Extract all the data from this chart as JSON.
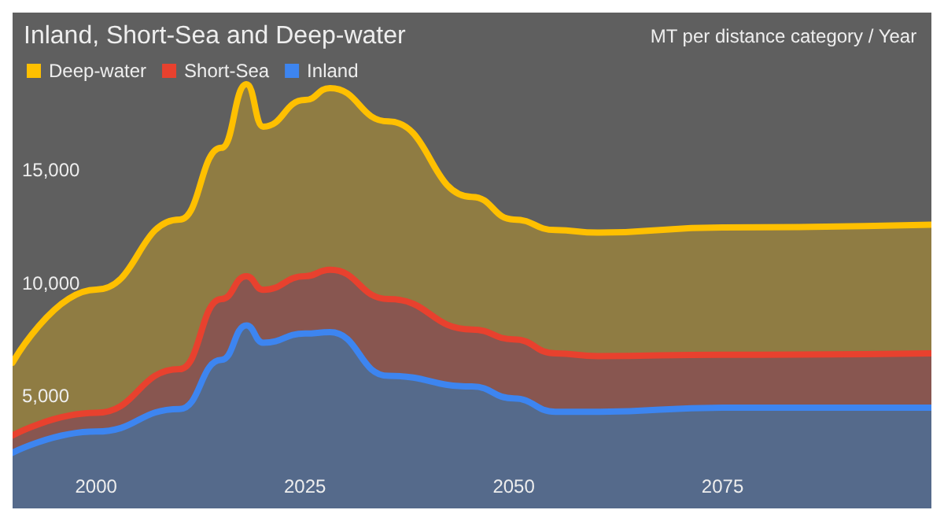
{
  "chart_data": {
    "type": "area",
    "title": "Inland, Short-Sea and Deep-water",
    "ylabel": "MT per distance category / Year",
    "x": [
      1990,
      2000,
      2010,
      2015,
      2018,
      2020,
      2025,
      2028,
      2035,
      2045,
      2050,
      2055,
      2060,
      2075,
      2100
    ],
    "stacked": true,
    "series": [
      {
        "name": "Inland",
        "color": "#3d85f0",
        "values": [
          2470,
          3410,
          4410,
          6590,
          8120,
          7350,
          7760,
          7820,
          5880,
          5410,
          4880,
          4290,
          4290,
          4470,
          4470
        ]
      },
      {
        "name": "Short-Sea",
        "color": "#e8412e",
        "values": [
          770,
          830,
          1770,
          2700,
          2180,
          2350,
          2540,
          2770,
          3410,
          2530,
          2620,
          2590,
          2470,
          2350,
          2410
        ]
      },
      {
        "name": "Deep-water",
        "color": "#ffc000",
        "values": [
          3230,
          5470,
          6640,
          6710,
          8520,
          7240,
          7820,
          8060,
          7880,
          5880,
          5320,
          5470,
          5480,
          5650,
          5710
        ]
      }
    ],
    "xlim": [
      1990,
      2100
    ],
    "xticks": [
      2000,
      2025,
      2050,
      2075
    ],
    "ylim": [
      0,
      22000
    ],
    "yticks": [
      {
        "value": 5000,
        "label": "5,000"
      },
      {
        "value": 10000,
        "label": "10,000"
      },
      {
        "value": 15000,
        "label": "15,000"
      }
    ],
    "legend": "top left",
    "marker": "none",
    "line_style": "solid"
  }
}
